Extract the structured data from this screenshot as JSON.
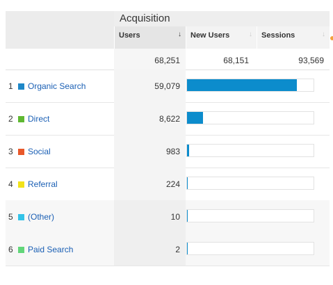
{
  "header": {
    "group_title": "Acquisition",
    "columns": [
      {
        "label": "Users",
        "sort_icon": "arrow-down"
      },
      {
        "label": "New Users",
        "sort_icon": "arrow-down"
      },
      {
        "label": "Sessions",
        "sort_icon": "arrow-down"
      }
    ]
  },
  "totals": {
    "users": "68,251",
    "new_users": "68,151",
    "sessions": "93,569"
  },
  "rows": [
    {
      "index": "1",
      "name": "Organic Search",
      "users": "59,079",
      "color": "#1e88c8",
      "share": 0.8656
    },
    {
      "index": "2",
      "name": "Direct",
      "users": "8,622",
      "color": "#5fb832",
      "share": 0.1263
    },
    {
      "index": "3",
      "name": "Social",
      "users": "983",
      "color": "#e8582a",
      "share": 0.0144
    },
    {
      "index": "4",
      "name": "Referral",
      "users": "224",
      "color": "#f2e21a",
      "share": 0.0033
    },
    {
      "index": "5",
      "name": "(Other)",
      "users": "10",
      "color": "#33c3e8",
      "share": 0.0001
    },
    {
      "index": "6",
      "name": "Paid Search",
      "users": "2",
      "color": "#62d67a",
      "share": 0.0
    }
  ],
  "colors": {
    "bar_fill": "#0c8ccc",
    "link": "#1a5fb4",
    "accent_dot": "#f3a13b"
  }
}
